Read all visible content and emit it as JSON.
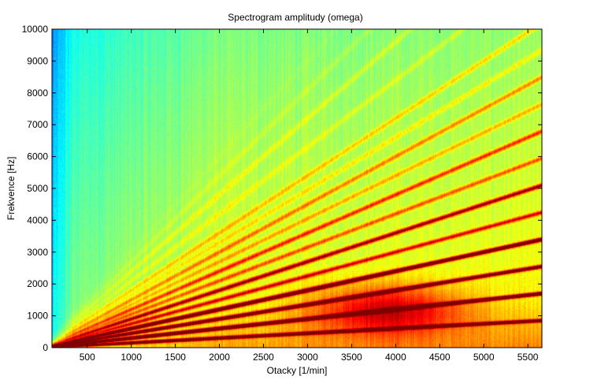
{
  "chart_data": {
    "type": "heatmap",
    "title": "Spectrogram amplitudy (omega)",
    "xlabel": "Otacky [1/min]",
    "ylabel": "Frekvence [Hz]",
    "xlim": [
      100,
      5660
    ],
    "ylim": [
      0,
      10000
    ],
    "xticks": [
      "500",
      "1000",
      "1500",
      "2000",
      "2500",
      "3000",
      "3500",
      "4000",
      "4500",
      "5000",
      "5500"
    ],
    "yticks": [
      "0",
      "1000",
      "2000",
      "3000",
      "4000",
      "5000",
      "6000",
      "7000",
      "8000",
      "9000",
      "10000"
    ],
    "colormap": "jet",
    "grid": false,
    "orders": [
      {
        "slope_hz_per_rpm": 0.15,
        "level": 0.9
      },
      {
        "slope_hz_per_rpm": 0.3,
        "level": 1.0
      },
      {
        "slope_hz_per_rpm": 0.45,
        "level": 0.88
      },
      {
        "slope_hz_per_rpm": 0.6,
        "level": 0.94
      },
      {
        "slope_hz_per_rpm": 0.75,
        "level": 0.7
      },
      {
        "slope_hz_per_rpm": 0.9,
        "level": 0.76
      },
      {
        "slope_hz_per_rpm": 1.05,
        "level": 0.62
      },
      {
        "slope_hz_per_rpm": 1.2,
        "level": 0.66
      },
      {
        "slope_hz_per_rpm": 1.35,
        "level": 0.56
      },
      {
        "slope_hz_per_rpm": 1.5,
        "level": 0.6
      },
      {
        "slope_hz_per_rpm": 1.65,
        "level": 0.52
      },
      {
        "slope_hz_per_rpm": 1.8,
        "level": 0.55
      },
      {
        "slope_hz_per_rpm": 2.1,
        "level": 0.5
      },
      {
        "slope_hz_per_rpm": 2.4,
        "level": 0.5
      },
      {
        "slope_hz_per_rpm": 2.7,
        "level": 0.48
      },
      {
        "slope_hz_per_rpm": 3.0,
        "level": 0.46
      }
    ],
    "hotspot": {
      "x": 3900,
      "y": 1200,
      "level": 0.85
    }
  }
}
